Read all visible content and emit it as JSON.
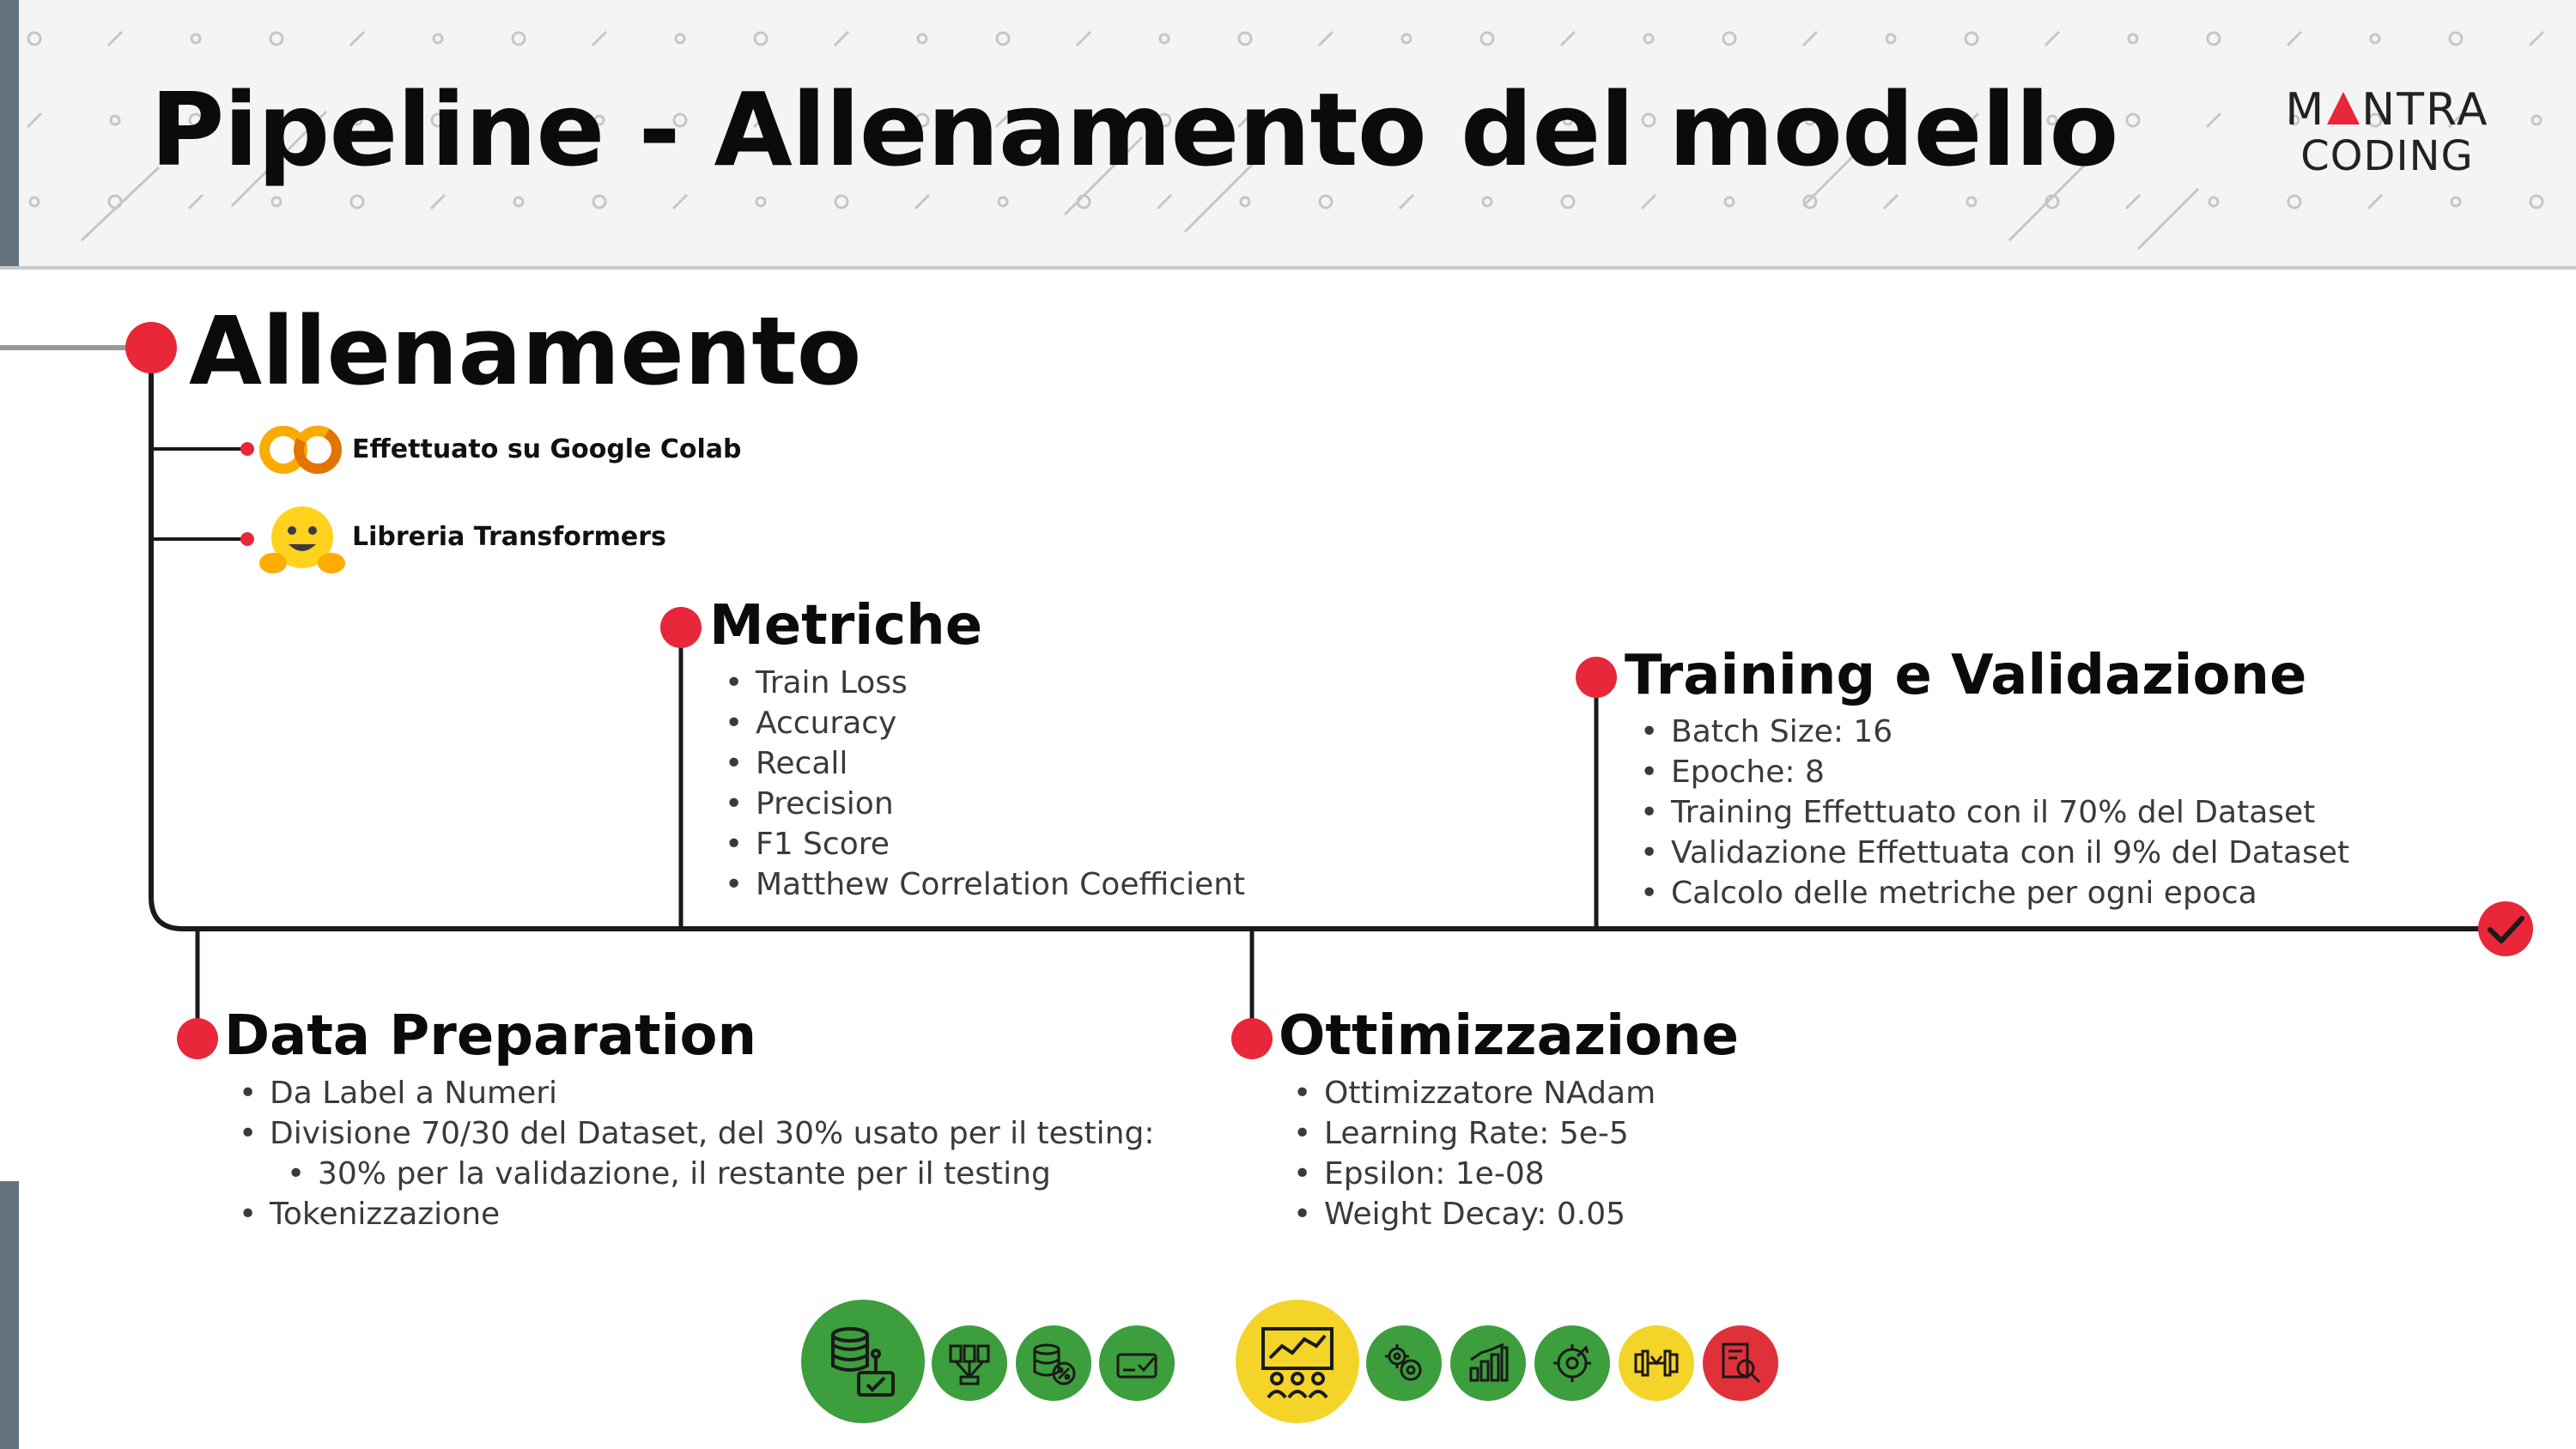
{
  "header": {
    "title": "Pipeline - Allenamento del modello",
    "logo_line1_left": "M",
    "logo_line1_right": "NTRA",
    "logo_line2": "CODING"
  },
  "main": {
    "title": "Allenamento",
    "items": [
      {
        "label": "Effettuato su Google Colab",
        "icon": "colab-icon"
      },
      {
        "label": "Libreria Transformers",
        "icon": "hugging-face-icon"
      }
    ]
  },
  "sections": {
    "metriche": {
      "title": "Metriche",
      "bullets": [
        "Train Loss",
        "Accuracy",
        "Recall",
        "Precision",
        "F1 Score",
        "Matthew Correlation Coefficient"
      ]
    },
    "training": {
      "title": "Training e Validazione",
      "bullets": [
        "Batch Size: 16",
        "Epoche: 8",
        "Training Effettuato con il 70% del Dataset",
        "Validazione Effettuata con il 9% del Dataset",
        "Calcolo delle metriche per ogni epoca"
      ]
    },
    "data_prep": {
      "title": "Data Preparation",
      "bullets": [
        "Da Label a Numeri",
        "Divisione 70/30 del Dataset, del 30% usato per il testing:",
        "30% per la validazione, il restante per il testing",
        "Tokenizzazione"
      ]
    },
    "ottimizzazione": {
      "title": "Ottimizzazione",
      "bullets": [
        "Ottimizzatore NAdam",
        "Learning Rate: 5e-5",
        "Epsilon: 1e-08",
        "Weight Decay: 0.05"
      ]
    }
  },
  "icons_row": [
    {
      "name": "database-process-icon",
      "color": "#3c9e3c"
    },
    {
      "name": "dataset-columns-icon",
      "color": "#3c9e3c"
    },
    {
      "name": "data-split-percent-icon",
      "color": "#3c9e3c"
    },
    {
      "name": "tokenize-check-icon",
      "color": "#3c9e3c"
    },
    {
      "name": "training-presentation-icon",
      "color": "#f4d428"
    },
    {
      "name": "settings-gears-icon",
      "color": "#3c9e3c"
    },
    {
      "name": "bar-chart-icon",
      "color": "#3c9e3c"
    },
    {
      "name": "optimization-gear-icon",
      "color": "#3c9e3c"
    },
    {
      "name": "dumbbell-icon",
      "color": "#f4d428"
    },
    {
      "name": "report-magnifier-icon",
      "color": "#e0303a"
    }
  ],
  "colors": {
    "accent_red": "#e8273a",
    "timeline_line": "#1a1a1a",
    "header_bg": "#f4f4f4",
    "side_bar": "#62737e",
    "green": "#3c9e3c",
    "yellow": "#f4d428"
  }
}
